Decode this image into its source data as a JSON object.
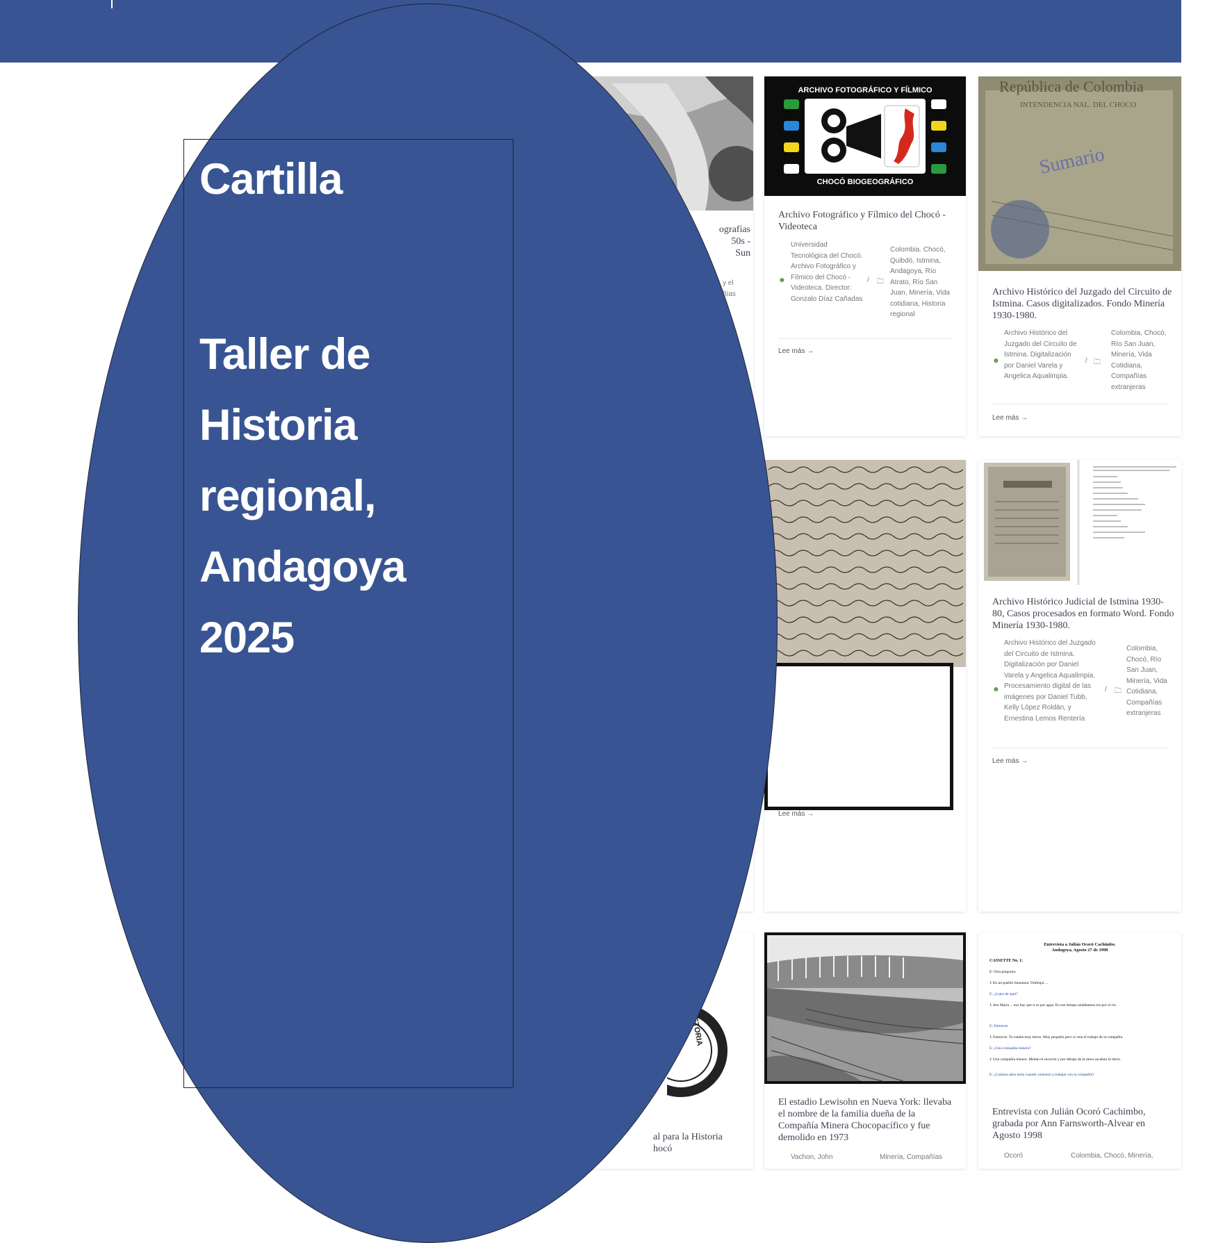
{
  "cover": {
    "title": "Cartilla",
    "subtitle_lines": [
      "Taller de",
      "Historia",
      "regional,",
      "Andagoya",
      "2025"
    ]
  },
  "logo": {
    "top_text": "ARCHIVO FOTOGRÁFICO Y FÍLMICO",
    "bottom_text": "CHOCÓ BIOGEOGRÁFICO"
  },
  "seal": {
    "text": "A E HISTORIA"
  },
  "cards": [
    {
      "title": "Archivo Fotográfico y Fílmico del Chocó - Videoteca",
      "author": "Universidad Tecnológica del Chocó. Archivo Fotográfico y Fílmico del Chocó - Videoteca. Director: Gonzalo Díaz Cañadas",
      "tags": "Colombia. Chocó, Quibdó, Istmina, Andagoya, Río Atrato, Río San Juan, Minería, Vida cotidiana, Historia regional",
      "more": "Lee más →"
    },
    {
      "title": "Archivo Histórico del Juzgado del Circuito de Istmina. Casos digitalizados. Fondo Minería 1930-1980.",
      "author": "Archivo Histórico del Juzgado del Circuito de Istmina. Digitalización por Daniel Varela y Angelica Aqualimpia.",
      "tags": "Colombia, Chocó, Río San Juan, Minería, Vida Cotidiana, Compañías extranjeras",
      "more": "Lee más →"
    },
    {
      "title": "Archivo Histórico Judicial de Istmina 1930-80, Casos procesados en formato Word. Fondo Minería 1930-1980.",
      "author": "Archivo Histórico del Juzgado del Circuito de Istmina. Digitalización por Daniel Varela y Angelica Aqualimpia. Procesamiento digital de las imágenes por Daniel Tubb, Kelly López Roldán, y Ernestina Lemos Rentería",
      "tags": "Colombia, Chocó, Río San Juan, Minería, Vida Cotidiana, Compañías extranjeras",
      "more": "Lee más →"
    },
    {
      "more": "Lee más →"
    },
    {
      "title": "El estadio Lewisohn en Nueva York: llevaba el nombre de la familia dueña de la Compañía Minera Chocopacífico y fue demolido en 1973",
      "author": "Vachon, John",
      "tags": "Minería, Compañías"
    },
    {
      "title": "Entrevista con Julián Ocoró Cachimbo, grabada por Ann Farnsworth-Alvear en Agosto 1998",
      "author": "Ocoró",
      "tags": "Colombia, Chocó, Minería,"
    }
  ],
  "partials": {
    "left_top_title": "ografías\n50s -\n Sun",
    "left_top_meta": "y el\nñías",
    "left_bottom_title": "al para la Historia\nhocó"
  },
  "transcript": {
    "heading": "Entrevista a Julián Ocoró Cachimbo.",
    "subheading": "Andagoya, Agosto 27 de 1998",
    "cassette": "CASSETTE No. 1:",
    "lines": [
      "E: Otra pregunta:",
      "J: En un pueblo llamamos Timbiquí ...",
      "E: ¿Lejos de aquí?",
      "J: Ave María ... eso hay que ir es por agua. En ese tiempo andábamos era por el río.",
      "E: Entonces",
      "J: Entonces. Yo estaba muy tierno. Muy pequeño pero sí veía el trabajo de la compañía.",
      "E: ¿Una compañía minera?",
      "J: Una compañía minera. Metían el socavón y por debajo de la tierra sacaban la tierra.",
      "E: ¿Cuántos años tenía cuando comenzó a trabajar con la compañía?"
    ]
  },
  "colors": {
    "cover_blue": "#385492",
    "logo_red": "#d42a1e",
    "logo_green": "#2a9a3c",
    "logo_blue": "#2a86d6",
    "logo_yellow": "#f2d51c"
  }
}
